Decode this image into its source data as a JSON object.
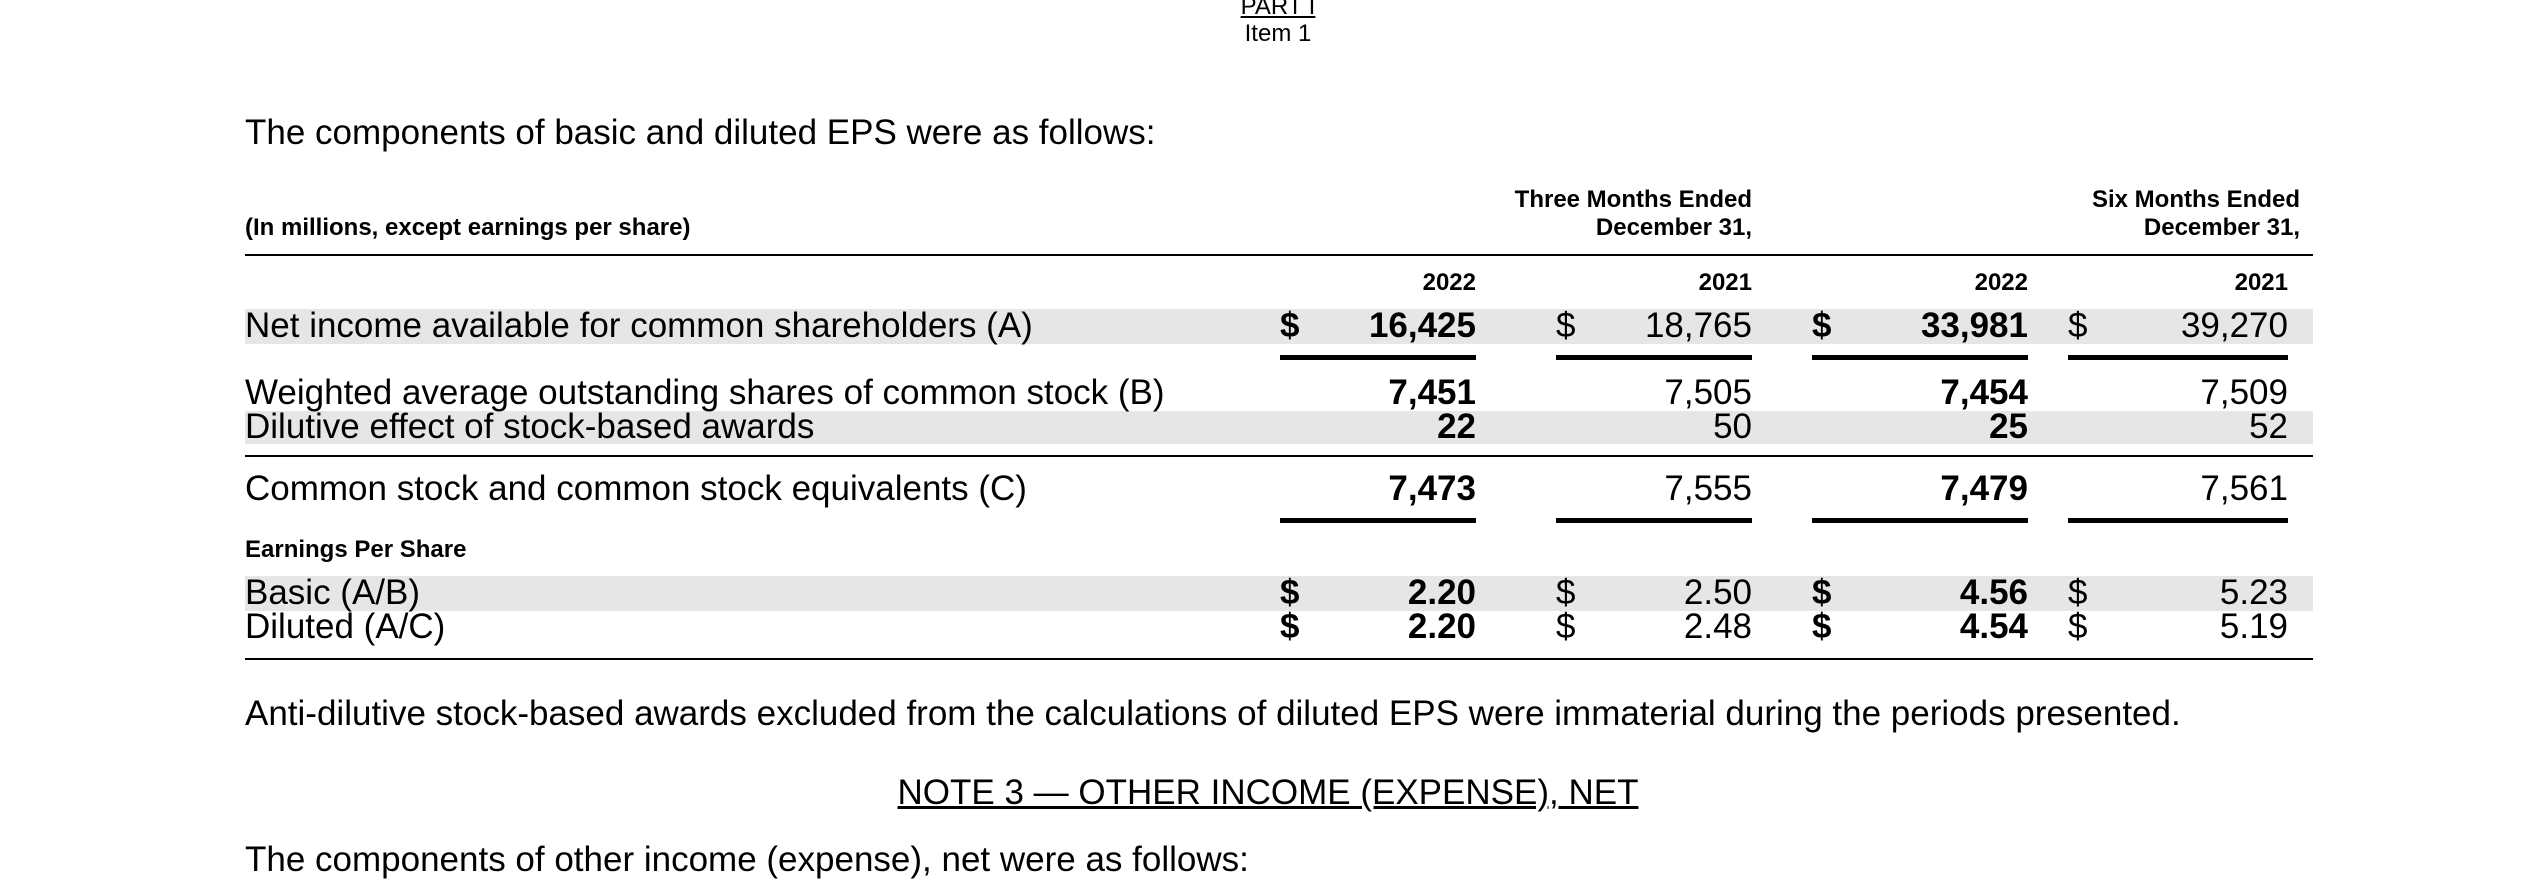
{
  "header": {
    "part": "PART I",
    "item": "Item 1"
  },
  "intro": "The components of basic and diluted EPS were as follows:",
  "table": {
    "units_label": "(In millions, except earnings per share)",
    "groups": [
      {
        "line1": "Three Months Ended",
        "line2": "December 31,"
      },
      {
        "line1": "Six Months Ended",
        "line2": "December 31,"
      }
    ],
    "years": [
      "2022",
      "2021",
      "2022",
      "2021"
    ],
    "rows": {
      "net_income": {
        "label": "Net income available for common shareholders (A)",
        "currency": [
          "$",
          "$",
          "$",
          "$"
        ],
        "values": [
          "16,425",
          "18,765",
          "33,981",
          "39,270"
        ]
      },
      "weighted_avg": {
        "label": "Weighted average outstanding shares of common stock (B)",
        "values": [
          "7,451",
          "7,505",
          "7,454",
          "7,509"
        ]
      },
      "dilutive": {
        "label": "Dilutive effect of stock-based awards",
        "values": [
          "22",
          "50",
          "25",
          "52"
        ]
      },
      "common_equiv": {
        "label": "Common stock and common stock equivalents (C)",
        "values": [
          "7,473",
          "7,555",
          "7,479",
          "7,561"
        ]
      },
      "eps_heading": "Earnings Per Share",
      "basic": {
        "label": "Basic (A/B)",
        "currency": [
          "$",
          "$",
          "$",
          "$"
        ],
        "values": [
          "2.20",
          "2.50",
          "4.56",
          "5.23"
        ]
      },
      "diluted": {
        "label": "Diluted (A/C)",
        "currency": [
          "$",
          "$",
          "$",
          "$"
        ],
        "values": [
          "2.20",
          "2.48",
          "4.54",
          "5.19"
        ]
      }
    }
  },
  "note_paragraph": "Anti-dilutive stock-based awards excluded from the calculations of diluted EPS were immaterial during the periods presented.",
  "note3": {
    "heading": "NOTE 3 — OTHER INCOME (EXPENSE), NET",
    "intro": "The components of other income (expense), net were as follows:"
  }
}
